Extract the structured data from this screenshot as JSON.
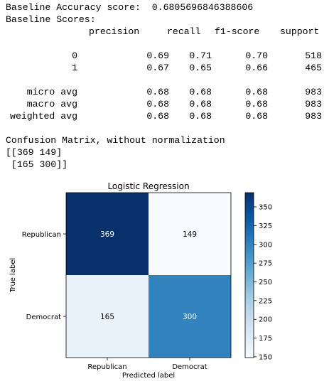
{
  "console": {
    "baseline_accuracy": "Baseline Accuracy score:  0.6805696846388606",
    "baseline_scores_title": "Baseline Scores:",
    "report_header": {
      "precision": "precision",
      "recall": "recall",
      "f1": "f1-score",
      "support": "support"
    },
    "report_rows": [
      {
        "label": "0",
        "precision": "0.69",
        "recall": "0.71",
        "f1": "0.70",
        "support": "518"
      },
      {
        "label": "1",
        "precision": "0.67",
        "recall": "0.65",
        "f1": "0.66",
        "support": "465"
      }
    ],
    "avg_rows": [
      {
        "label": "micro avg",
        "precision": "0.68",
        "recall": "0.68",
        "f1": "0.68",
        "support": "983"
      },
      {
        "label": "macro avg",
        "precision": "0.68",
        "recall": "0.68",
        "f1": "0.68",
        "support": "983"
      },
      {
        "label": "weighted avg",
        "precision": "0.68",
        "recall": "0.68",
        "f1": "0.68",
        "support": "983"
      }
    ],
    "confusion_title": "Confusion Matrix, without normalization",
    "confusion_lines": [
      "[[369 149]",
      " [165 300]]"
    ]
  },
  "chart_data": {
    "type": "heatmap",
    "title": "Logistic Regression",
    "xlabel": "Predicted label",
    "ylabel": "True label",
    "x_categories": [
      "Republican",
      "Democrat"
    ],
    "y_categories": [
      "Republican",
      "Democrat"
    ],
    "values": [
      [
        369,
        149
      ],
      [
        165,
        300
      ]
    ],
    "colormap": "Blues",
    "colorbar": {
      "min": 149,
      "max": 369,
      "ticks": [
        150,
        175,
        200,
        225,
        250,
        275,
        300,
        325,
        350
      ]
    },
    "colors": {
      "dark": "#08306b",
      "light": "#f7fbff"
    }
  }
}
